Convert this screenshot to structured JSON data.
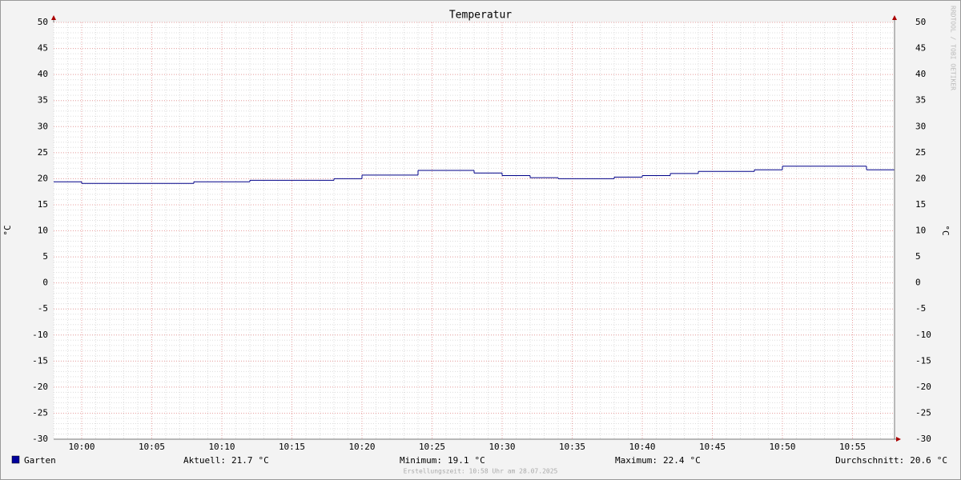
{
  "chart_data": {
    "type": "line",
    "title": "Temperatur",
    "ylabel": "°C",
    "watermark": "RRDTOOL / TOBI OETIKER",
    "footer": "Erstellungszeit: 10:58 Uhr am 28.07.2025",
    "series": [
      {
        "name": "Garten",
        "color": "#000088",
        "x": [
          "09:58",
          "10:00",
          "10:08",
          "10:12",
          "10:18",
          "10:20",
          "10:24",
          "10:28",
          "10:30",
          "10:32",
          "10:34",
          "10:38",
          "10:40",
          "10:42",
          "10:44",
          "10:48",
          "10:50",
          "10:56"
        ],
        "values": [
          19.4,
          19.1,
          19.4,
          19.7,
          20.0,
          20.7,
          21.6,
          21.1,
          20.6,
          20.2,
          20.0,
          20.3,
          20.6,
          21.0,
          21.4,
          21.7,
          22.4,
          21.7
        ]
      }
    ],
    "legend_color": "#00009c",
    "stats": [
      {
        "label": "Aktuell:",
        "value": 21.7
      },
      {
        "label": "Minimum:",
        "value": 19.1
      },
      {
        "label": "Maximum:",
        "value": 22.4
      },
      {
        "label": "Durchschnitt:",
        "value": 20.6
      }
    ],
    "xlim": [
      "09:58",
      "10:58"
    ],
    "xticks": [
      "10:00",
      "10:05",
      "10:10",
      "10:15",
      "10:20",
      "10:25",
      "10:30",
      "10:35",
      "10:40",
      "10:45",
      "10:50",
      "10:55"
    ],
    "ylim": [
      -30,
      50
    ],
    "yticks": [
      -30,
      -25,
      -20,
      -15,
      -10,
      -5,
      0,
      5,
      10,
      15,
      20,
      25,
      30,
      35,
      40,
      45,
      50
    ],
    "grid": true
  }
}
